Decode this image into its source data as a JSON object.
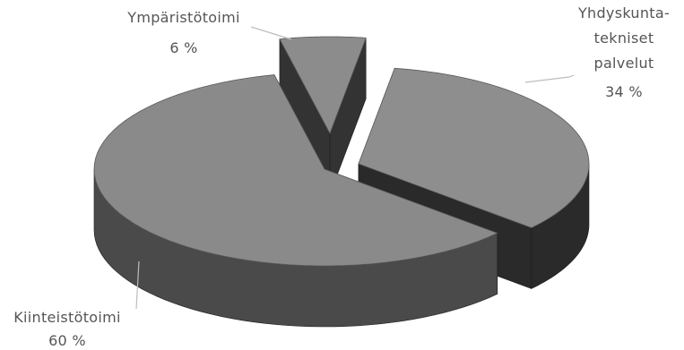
{
  "chart_data": {
    "type": "pie",
    "title": "",
    "categories": [
      "Yhdyskunta-tekniset palvelut",
      "Kiinteistötoimi",
      "Ympäristötoimi"
    ],
    "values": [
      34,
      60,
      6
    ],
    "unit": "%",
    "labels": [
      {
        "lines": [
          "Yhdyskunta-",
          "tekniset",
          "palvelut"
        ],
        "value_text": "34 %"
      },
      {
        "lines": [
          "Kiinteistötoimi"
        ],
        "value_text": "60 %"
      },
      {
        "lines": [
          "Ympäristötoimi"
        ],
        "value_text": "6 %"
      }
    ],
    "colors": {
      "top": [
        "#8e8e8e",
        "#8a8a8a",
        "#8c8c8c"
      ],
      "side": [
        "#2a2a2a",
        "#4a4a4a",
        "#333333"
      ]
    },
    "exploded": true,
    "three_d": true
  }
}
